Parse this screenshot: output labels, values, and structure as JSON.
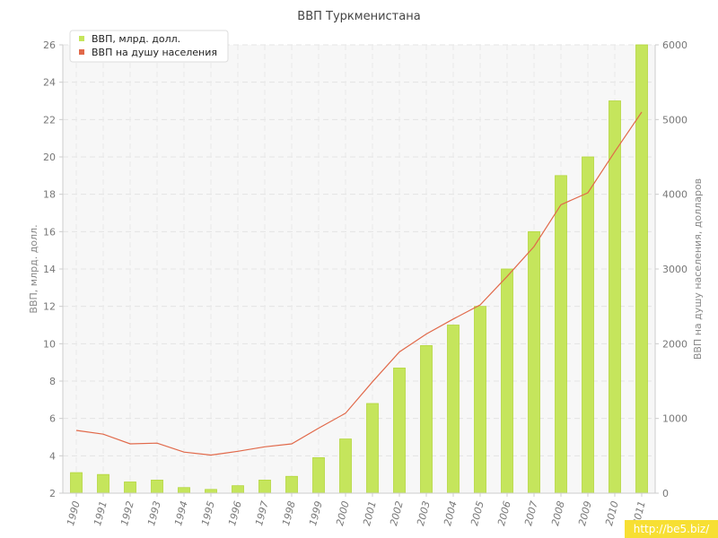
{
  "watermark": "http://be5.biz/",
  "colors": {
    "bar": "#c5e55c",
    "bar_edge": "#b4d63f",
    "line": "#e1694a"
  },
  "chart_data": {
    "type": "bar",
    "title": "ВВП Туркменистана",
    "categories": [
      "1990",
      "1991",
      "1992",
      "1993",
      "1994",
      "1995",
      "1996",
      "1997",
      "1998",
      "1999",
      "2000",
      "2001",
      "2002",
      "2003",
      "2004",
      "2005",
      "2006",
      "2007",
      "2008",
      "2009",
      "2010",
      "2011"
    ],
    "series": [
      {
        "name": "ВВП, млрд. долл.",
        "type": "bar",
        "axis": "left",
        "values": [
          3.1,
          3.0,
          2.6,
          2.7,
          2.3,
          2.2,
          2.4,
          2.7,
          2.9,
          3.9,
          4.9,
          6.8,
          8.7,
          9.9,
          11.0,
          12.0,
          14.0,
          16.0,
          19.0,
          20.0,
          23.0,
          26.0
        ]
      },
      {
        "name": "ВВП на душу населения",
        "type": "line",
        "axis": "right",
        "values": [
          840,
          790,
          660,
          670,
          550,
          510,
          560,
          620,
          660,
          870,
          1070,
          1490,
          1890,
          2130,
          2330,
          2520,
          2900,
          3300,
          3860,
          4020,
          4570,
          5100
        ]
      }
    ],
    "ylabel": "ВВП, млрд. долл.",
    "ylabel_right": "ВВП на душу населения, долларов",
    "ylim": [
      2,
      26
    ],
    "yticks": [
      2,
      4,
      6,
      8,
      10,
      12,
      14,
      16,
      18,
      20,
      22,
      24,
      26
    ],
    "ylim_right": [
      0,
      6000
    ],
    "yticks_right": [
      0,
      1000,
      2000,
      3000,
      4000,
      5000,
      6000
    ],
    "grid": true,
    "legend": "top-left"
  }
}
